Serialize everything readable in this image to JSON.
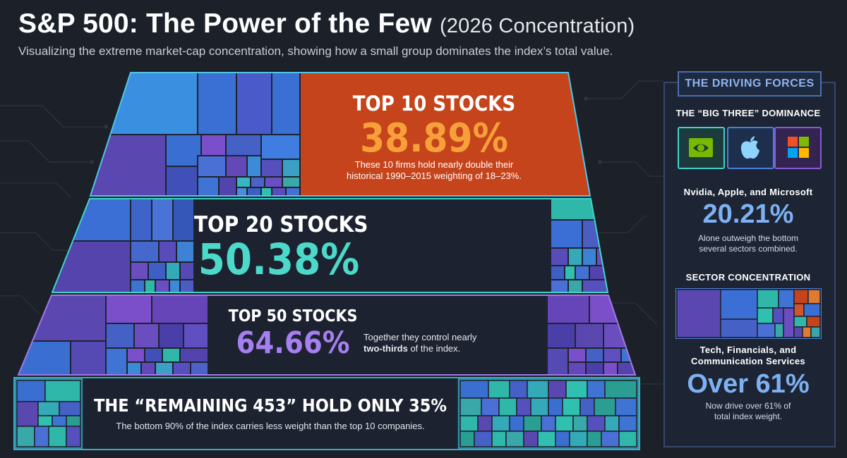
{
  "header": {
    "title_main": "S&P 500: The Power of the Few",
    "title_paren": "(2026 Concentration)",
    "subtitle": "Visualizing the extreme market-cap concentration, showing how a small group dominates the index’s total value."
  },
  "tiers": {
    "top10": {
      "heading": "TOP 10 STOCKS",
      "value": "38.89%",
      "description": "These 10 firms hold nearly double their historical 1990–2015 weighting of 18–23%."
    },
    "top20": {
      "heading": "TOP 20 STOCKS",
      "value": "50.38%"
    },
    "top50": {
      "heading": "TOP 50 STOCKS",
      "value": "64.66%",
      "description_line1": "Together they control nearly",
      "description_bold": "two-thirds",
      "description_rest": " of the index."
    },
    "remaining": {
      "heading": "THE “REMAINING 453” HOLD ONLY 35%",
      "description": "The bottom 90% of the index carries less weight than the top 10 companies."
    }
  },
  "sidebar": {
    "badge": "THE DRIVING FORCES",
    "big_three_heading": "THE “BIG THREE” DOMINANCE",
    "logos": [
      {
        "icon": "nvidia-logo",
        "color": "#76b900"
      },
      {
        "icon": "apple-logo",
        "color": "#8fd3ff"
      },
      {
        "icon": "microsoft-logo",
        "color": "#f25022"
      }
    ],
    "big_three_names": "Nvidia, Apple, and Microsoft",
    "big_three_value": "20.21%",
    "big_three_desc": "Alone outweigh the bottom several sectors combined.",
    "sector_heading": "SECTOR CONCENTRATION",
    "sector_names_line1": "Tech, Financials, and",
    "sector_names_line2": "Communication Services",
    "sector_value": "Over 61%",
    "sector_desc": "Now drive over 61% of total index weight."
  },
  "colors": {
    "accent_orange": "#f7a03a",
    "tier1_panel": "#c6441b",
    "teal": "#4dd9c9",
    "purple": "#a67ff0",
    "blue": "#7eb1f2",
    "background": "#1b2029"
  }
}
